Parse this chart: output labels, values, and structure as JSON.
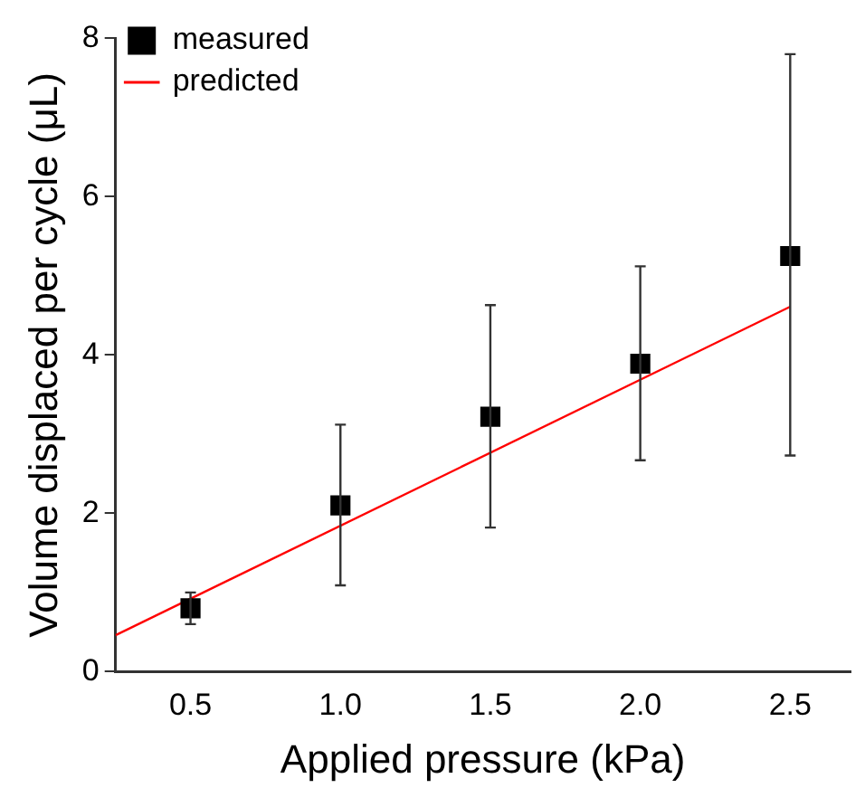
{
  "chart_data": {
    "type": "scatter",
    "xlabel": "Applied pressure (kPa)",
    "ylabel": "Volume displaced per cycle (μL)",
    "xlim": [
      0.25,
      2.7
    ],
    "xticks": [
      {
        "value": 0.5,
        "label": "0.5"
      },
      {
        "value": 1,
        "label": "1.0"
      },
      {
        "value": 1.5,
        "label": "1.5"
      },
      {
        "value": 2,
        "label": "2.0"
      },
      {
        "value": 2.5,
        "label": "2.5"
      }
    ],
    "ylim": [
      0,
      8
    ],
    "yticks": [
      0,
      2,
      4,
      6,
      8
    ],
    "grid": false,
    "legend": "top left",
    "series": [
      {
        "name": "measured",
        "color": "#000000",
        "marker": "square",
        "x": [
          0.5,
          1,
          1.5,
          2,
          2.5
        ],
        "values": [
          0.8,
          2.1,
          3.22,
          3.89,
          5.25
        ],
        "errors": [
          [
            0.6,
            1.0
          ],
          [
            1.09,
            3.12
          ],
          [
            1.82,
            4.63
          ],
          [
            2.67,
            5.12
          ],
          [
            2.73,
            7.8
          ]
        ]
      },
      {
        "name": "predicted",
        "type": "line",
        "color": "#ff0000",
        "marker": "none",
        "line_style": "solid",
        "x": [
          0.25,
          2.5
        ],
        "values": [
          0.46,
          4.61
        ]
      }
    ]
  }
}
